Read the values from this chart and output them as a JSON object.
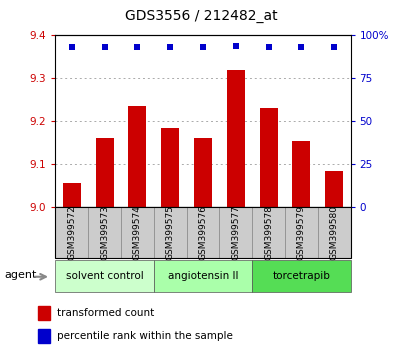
{
  "title": "GDS3556 / 212482_at",
  "samples": [
    "GSM399572",
    "GSM399573",
    "GSM399574",
    "GSM399575",
    "GSM399576",
    "GSM399577",
    "GSM399578",
    "GSM399579",
    "GSM399580"
  ],
  "red_values": [
    9.055,
    9.16,
    9.235,
    9.185,
    9.16,
    9.32,
    9.23,
    9.155,
    9.085
  ],
  "blue_values": [
    93,
    93,
    93,
    93,
    93,
    94,
    93,
    93,
    93
  ],
  "ylim_left": [
    9.0,
    9.4
  ],
  "ylim_right": [
    0,
    100
  ],
  "yticks_left": [
    9.0,
    9.1,
    9.2,
    9.3,
    9.4
  ],
  "yticks_right": [
    0,
    25,
    50,
    75,
    100
  ],
  "ytick_labels_right": [
    "0",
    "25",
    "50",
    "75",
    "100%"
  ],
  "groups": [
    {
      "label": "solvent control",
      "start": 0,
      "end": 3,
      "color": "#ccffcc"
    },
    {
      "label": "angiotensin II",
      "start": 3,
      "end": 6,
      "color": "#aaffaa"
    },
    {
      "label": "torcetrapib",
      "start": 6,
      "end": 9,
      "color": "#55dd55"
    }
  ],
  "bar_color": "#cc0000",
  "dot_color": "#0000cc",
  "bar_width": 0.55,
  "ylabel_left_color": "#cc0000",
  "ylabel_right_color": "#0000cc",
  "grid_color": "#aaaaaa",
  "tick_bg_color": "#cccccc",
  "legend_red_label": "transformed count",
  "legend_blue_label": "percentile rank within the sample",
  "agent_label": "agent"
}
